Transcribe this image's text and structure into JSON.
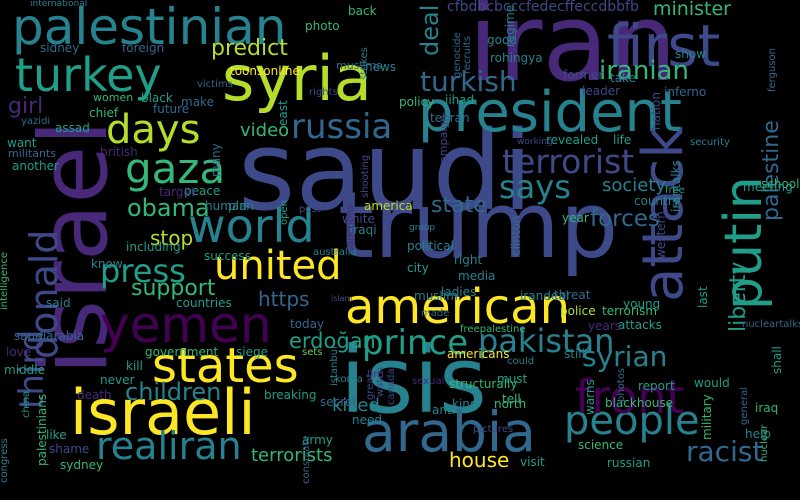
{
  "palette": {
    "background": "#000000",
    "colors": [
      "#440154",
      "#482878",
      "#3e4989",
      "#31688e",
      "#26828e",
      "#1f9e89",
      "#35b779",
      "#6ece58",
      "#b5de2b",
      "#fde725"
    ]
  },
  "words": [
    {
      "text": "saudi",
      "color": 2
    },
    {
      "text": "trump",
      "color": 2
    },
    {
      "text": "isis",
      "color": 4
    },
    {
      "text": "iran",
      "color": 1
    },
    {
      "text": "israel",
      "color": 1
    },
    {
      "text": "syria",
      "color": 8
    },
    {
      "text": "president",
      "color": 4
    },
    {
      "text": "palestinian",
      "color": 4
    },
    {
      "text": "israeli",
      "color": 9
    },
    {
      "text": "first",
      "color": 2
    },
    {
      "text": "turkey",
      "color": 5
    },
    {
      "text": "yemen",
      "color": 0
    },
    {
      "text": "american",
      "color": 9
    },
    {
      "text": "states",
      "color": 9
    },
    {
      "text": "arabia",
      "color": 3
    },
    {
      "text": "united",
      "color": 9
    },
    {
      "text": "world",
      "color": 4
    },
    {
      "text": "attack",
      "color": 2
    },
    {
      "text": "putin",
      "color": 5
    },
    {
      "text": "donald",
      "color": 2
    },
    {
      "text": "people",
      "color": 4
    },
    {
      "text": "front",
      "color": 0
    },
    {
      "text": "realiran",
      "color": 4
    },
    {
      "text": "days",
      "color": 8
    },
    {
      "text": "gaza",
      "color": 6
    },
    {
      "text": "terrorist",
      "color": 2
    },
    {
      "text": "says",
      "color": 4
    },
    {
      "text": "russia",
      "color": 3
    },
    {
      "text": "press",
      "color": 5
    },
    {
      "text": "prince",
      "color": 5
    },
    {
      "text": "pakistan",
      "color": 4
    },
    {
      "text": "syrian",
      "color": 4
    },
    {
      "text": "turkish",
      "color": 3
    },
    {
      "text": "children",
      "color": 4
    },
    {
      "text": "iranian",
      "color": 6
    },
    {
      "text": "predict",
      "color": 8
    },
    {
      "text": "obama",
      "color": 6
    },
    {
      "text": "support",
      "color": 6
    },
    {
      "text": "third",
      "color": 2
    },
    {
      "text": "palestine",
      "color": 3
    },
    {
      "text": "liberty",
      "color": 5
    },
    {
      "text": "forces",
      "color": 3
    },
    {
      "text": "state",
      "color": 3
    },
    {
      "text": "racist",
      "color": 3
    },
    {
      "text": "deal",
      "color": 4
    },
    {
      "text": "minister",
      "color": 6
    },
    {
      "text": "stop",
      "color": 8
    },
    {
      "text": "erdoğan",
      "color": 5
    },
    {
      "text": "video",
      "color": 6
    },
    {
      "text": "house",
      "color": 9
    },
    {
      "text": "killed",
      "color": 4
    },
    {
      "text": "girl",
      "color": 1
    },
    {
      "text": "https",
      "color": 3
    },
    {
      "text": "society",
      "color": 4
    },
    {
      "text": "terrorists",
      "color": 6
    },
    {
      "text": "cfbdbcbcccfedecffeccdbbfb",
      "color": 2
    },
    {
      "text": "international",
      "color": 4
    },
    {
      "text": "sidney",
      "color": 3
    },
    {
      "text": "foreign",
      "color": 3
    },
    {
      "text": "photo",
      "color": 6
    },
    {
      "text": "news",
      "color": 4
    },
    {
      "text": "back",
      "color": 6
    },
    {
      "text": "strikes",
      "color": 4
    },
    {
      "text": "muslims",
      "color": 3
    },
    {
      "text": "toonsonline",
      "color": 9
    },
    {
      "text": "women",
      "color": 6
    },
    {
      "text": "black",
      "color": 5
    },
    {
      "text": "chief",
      "color": 6
    },
    {
      "text": "future",
      "color": 3
    },
    {
      "text": "make",
      "color": 3
    },
    {
      "text": "assad",
      "color": 5
    },
    {
      "text": "want",
      "color": 5
    },
    {
      "text": "british",
      "color": 1
    },
    {
      "text": "another",
      "color": 5
    },
    {
      "text": "east",
      "color": 5
    },
    {
      "text": "policy",
      "color": 6
    },
    {
      "text": "jihad",
      "color": 5
    },
    {
      "text": "tehran",
      "color": 3
    },
    {
      "text": "campaign",
      "color": 2
    },
    {
      "text": "revealed",
      "color": 5
    },
    {
      "text": "life",
      "color": 5
    },
    {
      "text": "nation",
      "color": 2
    },
    {
      "text": "leader",
      "color": 2
    },
    {
      "text": "former",
      "color": 2
    },
    {
      "text": "take",
      "color": 4
    },
    {
      "text": "inferno",
      "color": 3
    },
    {
      "text": "security",
      "color": 4
    },
    {
      "text": "peace",
      "color": 5
    },
    {
      "text": "human",
      "color": 4
    },
    {
      "text": "plan",
      "color": 4
    },
    {
      "text": "target",
      "color": 1
    },
    {
      "text": "country",
      "color": 4
    },
    {
      "text": "america",
      "color": 8
    },
    {
      "text": "white",
      "color": 2
    },
    {
      "text": "iraqi",
      "color": 4
    },
    {
      "text": "year",
      "color": 6
    },
    {
      "text": "clinton",
      "color": 3
    },
    {
      "text": "irantalks",
      "color": 4
    },
    {
      "text": "western",
      "color": 2
    },
    {
      "text": "school",
      "color": 6
    },
    {
      "text": "meeting",
      "color": 5
    },
    {
      "text": "including",
      "color": 5
    },
    {
      "text": "success",
      "color": 5
    },
    {
      "text": "australia",
      "color": 4
    },
    {
      "text": "political",
      "color": 4
    },
    {
      "text": "right",
      "color": 4
    },
    {
      "text": "media",
      "color": 4
    },
    {
      "text": "city",
      "color": 5
    },
    {
      "text": "know",
      "color": 4
    },
    {
      "text": "said",
      "color": 4
    },
    {
      "text": "countries",
      "color": 5
    },
    {
      "text": "saudiarabia",
      "color": 3
    },
    {
      "text": "today",
      "color": 3
    },
    {
      "text": "muslim",
      "color": 4
    },
    {
      "text": "ladies",
      "color": 4
    },
    {
      "text": "irandeal",
      "color": 4
    },
    {
      "text": "threat",
      "color": 3
    },
    {
      "text": "police",
      "color": 8
    },
    {
      "text": "young",
      "color": 5
    },
    {
      "text": "attacks",
      "color": 5
    },
    {
      "text": "terrorism",
      "color": 6
    },
    {
      "text": "years",
      "color": 1
    },
    {
      "text": "last",
      "color": 5
    },
    {
      "text": "nucleartalks",
      "color": 3
    },
    {
      "text": "love",
      "color": 1
    },
    {
      "text": "government",
      "color": 6
    },
    {
      "text": "siege",
      "color": 5
    },
    {
      "text": "sets",
      "color": 7
    },
    {
      "text": "americans",
      "color": 9
    },
    {
      "text": "could",
      "color": 4
    },
    {
      "text": "still",
      "color": 4
    },
    {
      "text": "middle",
      "color": 5
    },
    {
      "text": "kill",
      "color": 5
    },
    {
      "text": "never",
      "color": 5
    },
    {
      "text": "death",
      "color": 1
    },
    {
      "text": "breaking",
      "color": 5
    },
    {
      "text": "structurally",
      "color": 6
    },
    {
      "text": "must",
      "color": 5
    },
    {
      "text": "king",
      "color": 4
    },
    {
      "text": "tell",
      "color": 6
    },
    {
      "text": "warns",
      "color": 5
    },
    {
      "text": "report",
      "color": 5
    },
    {
      "text": "would",
      "color": 5
    },
    {
      "text": "shall",
      "color": 5
    },
    {
      "text": "palestinians",
      "color": 6
    },
    {
      "text": "secret",
      "color": 3
    },
    {
      "text": "need",
      "color": 4
    },
    {
      "text": "fire",
      "color": 1
    },
    {
      "text": "anti",
      "color": 4
    },
    {
      "text": "north",
      "color": 6
    },
    {
      "text": "blackhouse",
      "color": 6
    },
    {
      "text": "military",
      "color": 6
    },
    {
      "text": "iraq",
      "color": 6
    },
    {
      "text": "help",
      "color": 4
    },
    {
      "text": "like",
      "color": 5
    },
    {
      "text": "shame",
      "color": 2
    },
    {
      "text": "army",
      "color": 5
    },
    {
      "text": "science",
      "color": 6
    },
    {
      "text": "sydney",
      "color": 6
    },
    {
      "text": "visit",
      "color": 5
    },
    {
      "text": "russian",
      "color": 5
    },
    {
      "text": "nuclear",
      "color": 6
    },
    {
      "text": "regime",
      "color": 4
    },
    {
      "text": "ferguson",
      "color": 3
    },
    {
      "text": "rohingya",
      "color": 4
    },
    {
      "text": "good",
      "color": 4
    },
    {
      "text": "show",
      "color": 4
    },
    {
      "text": "recruits",
      "color": 3
    },
    {
      "text": "genocide",
      "color": 3
    },
    {
      "text": "rights",
      "color": 2
    },
    {
      "text": "free",
      "color": 5
    },
    {
      "text": "china",
      "color": 5
    },
    {
      "text": "intelligence",
      "color": 6
    },
    {
      "text": "congress",
      "color": 4
    },
    {
      "text": "militants",
      "color": 3
    },
    {
      "text": "yazidi",
      "color": 3
    },
    {
      "text": "victims",
      "color": 3
    },
    {
      "text": "many",
      "color": 3
    },
    {
      "text": "open",
      "color": 5
    },
    {
      "text": "sanctions",
      "color": 1
    },
    {
      "text": "shooting",
      "color": 2
    },
    {
      "text": "post",
      "color": 2
    },
    {
      "text": "group",
      "color": 4
    },
    {
      "text": "korea",
      "color": 4
    },
    {
      "text": "istanbul",
      "color": 4
    },
    {
      "text": "watch",
      "color": 2
    },
    {
      "text": "great",
      "color": 2
    },
    {
      "text": "islam",
      "color": 2
    },
    {
      "text": "sexual",
      "color": 1
    },
    {
      "text": "canada",
      "color": 2
    },
    {
      "text": "pictures",
      "color": 2
    },
    {
      "text": "photos",
      "color": 3
    },
    {
      "text": "general",
      "color": 3
    },
    {
      "text": "freepalestine",
      "color": 6
    },
    {
      "text": "consulate",
      "color": 3
    },
    {
      "text": "working",
      "color": 2
    },
    {
      "text": "made",
      "color": 3
    },
    {
      "text": "west",
      "color": 3
    }
  ]
}
